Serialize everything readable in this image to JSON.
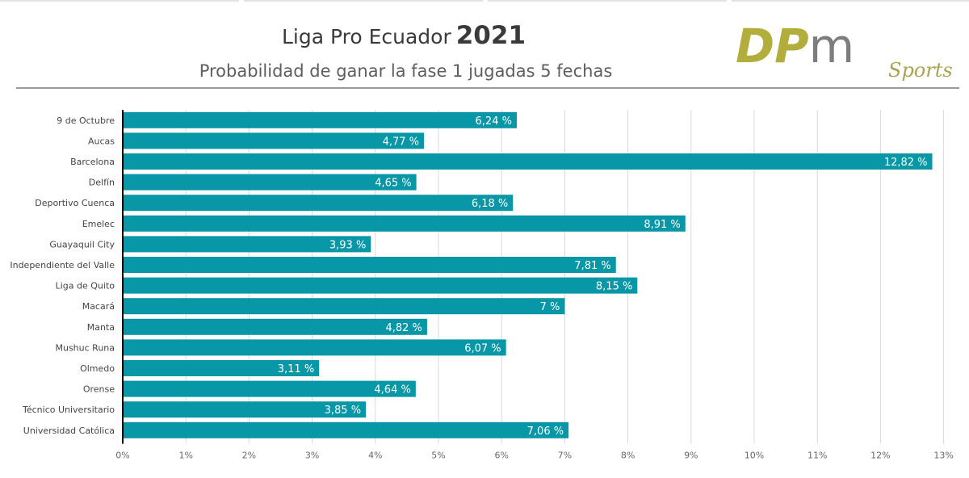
{
  "header": {
    "title_main": "Liga Pro Ecuador",
    "title_year": "2021",
    "subtitle": "Probabilidad de ganar la fase 1 jugadas 5 fechas"
  },
  "logo": {
    "brand": "DPm",
    "tag": "Sports",
    "color_dark": "#b3ae3c",
    "color_gray": "#7d7d7d",
    "color_tag": "#a8a550"
  },
  "colors": {
    "bar": "#0897a6",
    "grid": "#d9d9d9",
    "axis": "#000000"
  },
  "chart_data": {
    "type": "bar",
    "orientation": "horizontal",
    "title": "Liga Pro Ecuador 2021",
    "subtitle": "Probabilidad de ganar la fase 1 jugadas 5 fechas",
    "xlabel": "",
    "ylabel": "",
    "xlim": [
      0,
      13
    ],
    "x_ticks": [
      "0%",
      "1%",
      "2%",
      "3%",
      "4%",
      "5%",
      "6%",
      "7%",
      "8%",
      "9%",
      "10%",
      "11%",
      "12%",
      "13%"
    ],
    "grid": true,
    "legend": "none",
    "categories": [
      "9 de Octubre",
      "Aucas",
      "Barcelona",
      "Delfín",
      "Deportivo Cuenca",
      "Emelec",
      "Guayaquil City",
      "Independiente del Valle",
      "Liga de Quito",
      "Macará",
      "Manta",
      "Mushuc Runa",
      "Olmedo",
      "Orense",
      "Técnico Universitario",
      "Universidad Católica"
    ],
    "values": [
      6.24,
      4.77,
      12.82,
      4.65,
      6.18,
      8.91,
      3.93,
      7.81,
      8.15,
      7,
      4.82,
      6.07,
      3.11,
      4.64,
      3.85,
      7.06
    ],
    "value_labels": [
      "6,24 %",
      "4,77 %",
      "12,82 %",
      "4,65 %",
      "6,18 %",
      "8,91 %",
      "3,93 %",
      "7,81 %",
      "8,15 %",
      "7 %",
      "4,82 %",
      "6,07 %",
      "3,11 %",
      "4,64 %",
      "3,85 %",
      "7,06 %"
    ]
  }
}
